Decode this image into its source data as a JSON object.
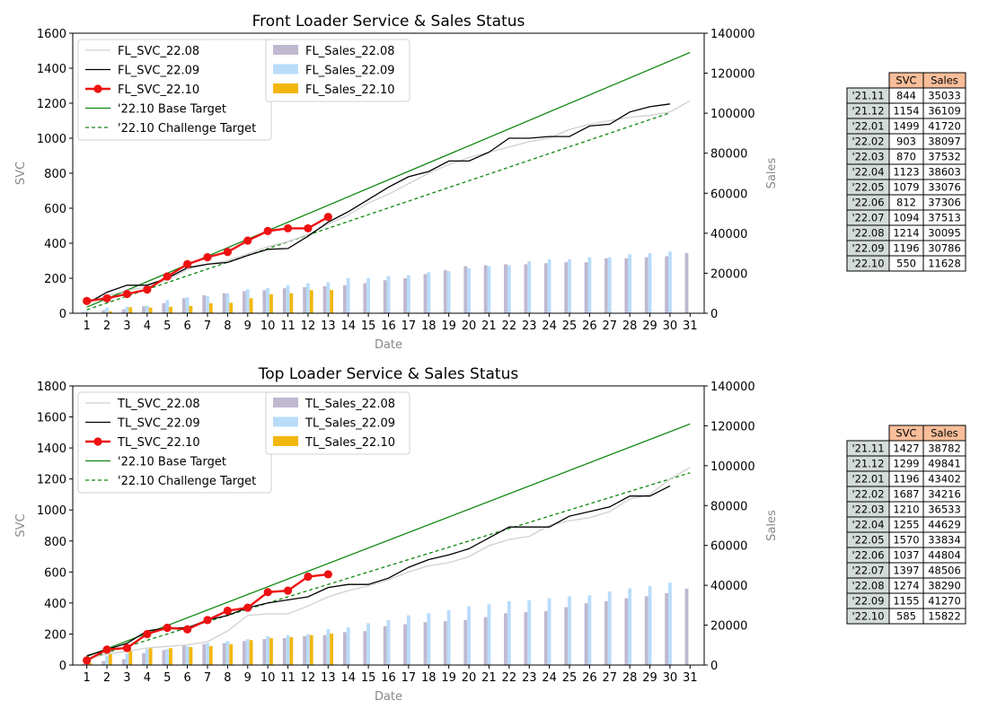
{
  "colors": {
    "svc_prev2": "#d0d0d0",
    "svc_prev1": "#000000",
    "svc_curr": "#ee1111",
    "base_target": "#118811",
    "challenge_target": "#118811",
    "sales_prev2": "#c0b8cf",
    "sales_prev1": "#b9dcfb",
    "sales_curr": "#f2b70f",
    "table_header_bg": "#f8be9a",
    "table_rowlabel_bg": "#d4dcda"
  },
  "chart_data": [
    {
      "type": "bar+line",
      "title": "Front Loader Service & Sales Status",
      "xlabel": "Date",
      "ylabel": "SVC",
      "y2label": "Sales",
      "ylim": [
        0,
        1600
      ],
      "y2lim": [
        0,
        140000
      ],
      "yticks": [
        0,
        200,
        400,
        600,
        800,
        1000,
        1200,
        1400,
        1600
      ],
      "y2ticks": [
        0,
        20000,
        40000,
        60000,
        80000,
        100000,
        120000,
        140000
      ],
      "x": [
        1,
        2,
        3,
        4,
        5,
        6,
        7,
        8,
        9,
        10,
        11,
        12,
        13,
        14,
        15,
        16,
        17,
        18,
        19,
        20,
        21,
        22,
        23,
        24,
        25,
        26,
        27,
        28,
        29,
        30,
        31
      ],
      "legend_left": {
        "position": "upper-left",
        "entries": [
          "FL_SVC_22.08",
          "FL_SVC_22.09",
          "FL_SVC_22.10",
          "'22.10 Base Target",
          "'22.10 Challenge Target"
        ]
      },
      "legend_bars": {
        "position": "upper-center",
        "entries": [
          "FL_Sales_22.08",
          "FL_Sales_22.09",
          "FL_Sales_22.10"
        ]
      },
      "svc_series": [
        {
          "name": "FL_SVC_22.08",
          "values": [
            70,
            100,
            130,
            150,
            190,
            250,
            280,
            300,
            340,
            380,
            410,
            450,
            510,
            560,
            630,
            680,
            740,
            800,
            850,
            890,
            920,
            950,
            980,
            1000,
            1050,
            1080,
            1100,
            1120,
            1130,
            1150,
            1214
          ]
        },
        {
          "name": "FL_SVC_22.09",
          "values": [
            55,
            120,
            160,
            160,
            200,
            260,
            280,
            290,
            330,
            365,
            370,
            440,
            520,
            580,
            650,
            720,
            780,
            810,
            870,
            870,
            920,
            1000,
            1000,
            1010,
            1010,
            1070,
            1080,
            1150,
            1180,
            1196
          ]
        },
        {
          "name": "FL_SVC_22.10",
          "values": [
            70,
            85,
            110,
            135,
            210,
            280,
            320,
            350,
            415,
            470,
            485,
            485,
            550
          ]
        }
      ],
      "targets": [
        {
          "name": "'22.10 Base Target",
          "from": [
            1,
            35
          ],
          "to": [
            31,
            1490
          ],
          "style": "solid"
        },
        {
          "name": "'22.10 Challenge Target",
          "from": [
            1,
            20
          ],
          "to": [
            30,
            1145
          ],
          "style": "dashed"
        }
      ],
      "sales_series": [
        {
          "name": "FL_Sales_22.08",
          "values": [
            400,
            1500,
            2000,
            3500,
            5000,
            7500,
            9000,
            10000,
            11000,
            11500,
            12500,
            13000,
            13500,
            14000,
            15000,
            16500,
            17500,
            19500,
            21500,
            23500,
            24000,
            24500,
            24500,
            25000,
            25500,
            25500,
            27500,
            27500,
            28000,
            28500,
            30095
          ]
        },
        {
          "name": "FL_Sales_22.09",
          "values": [
            1100,
            2800,
            3300,
            3800,
            6500,
            8000,
            8500,
            10000,
            12000,
            12500,
            14000,
            15000,
            15500,
            17500,
            17500,
            18500,
            19000,
            20500,
            21000,
            22500,
            23500,
            24000,
            26000,
            27000,
            27000,
            28000,
            28000,
            29500,
            30000,
            30786
          ]
        },
        {
          "name": "FL_Sales_22.10",
          "values": [
            200,
            1000,
            3000,
            2800,
            3200,
            3600,
            5000,
            5200,
            7500,
            9500,
            10000,
            11500,
            11628
          ]
        }
      ],
      "table": {
        "headers": [
          "SVC",
          "Sales"
        ],
        "rows": [
          {
            "label": "'21.11",
            "svc": "844",
            "sales": "35033"
          },
          {
            "label": "'21.12",
            "svc": "1154",
            "sales": "36109"
          },
          {
            "label": "'22.01",
            "svc": "1499",
            "sales": "41720"
          },
          {
            "label": "'22.02",
            "svc": "903",
            "sales": "38097"
          },
          {
            "label": "'22.03",
            "svc": "870",
            "sales": "37532"
          },
          {
            "label": "'22.04",
            "svc": "1123",
            "sales": "38603"
          },
          {
            "label": "'22.05",
            "svc": "1079",
            "sales": "33076"
          },
          {
            "label": "'22.06",
            "svc": "812",
            "sales": "37306"
          },
          {
            "label": "'22.07",
            "svc": "1094",
            "sales": "37513"
          },
          {
            "label": "'22.08",
            "svc": "1214",
            "sales": "30095"
          },
          {
            "label": "'22.09",
            "svc": "1196",
            "sales": "30786"
          },
          {
            "label": "'22.10",
            "svc": "550",
            "sales": "11628"
          }
        ]
      }
    },
    {
      "type": "bar+line",
      "title": "Top Loader Service & Sales Status",
      "xlabel": "Date",
      "ylabel": "SVC",
      "y2label": "Sales",
      "ylim": [
        0,
        1800
      ],
      "y2lim": [
        0,
        140000
      ],
      "yticks": [
        0,
        200,
        400,
        600,
        800,
        1000,
        1200,
        1400,
        1600,
        1800
      ],
      "y2ticks": [
        0,
        20000,
        40000,
        60000,
        80000,
        100000,
        120000,
        140000
      ],
      "x": [
        1,
        2,
        3,
        4,
        5,
        6,
        7,
        8,
        9,
        10,
        11,
        12,
        13,
        14,
        15,
        16,
        17,
        18,
        19,
        20,
        21,
        22,
        23,
        24,
        25,
        26,
        27,
        28,
        29,
        30,
        31
      ],
      "legend_left": {
        "position": "upper-left",
        "entries": [
          "TL_SVC_22.08",
          "TL_SVC_22.09",
          "TL_SVC_22.10",
          "'22.10 Base Target",
          "'22.10 Challenge Target"
        ]
      },
      "legend_bars": {
        "position": "upper-center",
        "entries": [
          "TL_Sales_22.08",
          "TL_Sales_22.09",
          "TL_Sales_22.10"
        ]
      },
      "svc_series": [
        {
          "name": "TL_SVC_22.08",
          "values": [
            40,
            70,
            90,
            110,
            120,
            130,
            150,
            220,
            320,
            330,
            330,
            380,
            440,
            480,
            510,
            550,
            600,
            640,
            660,
            700,
            770,
            810,
            830,
            900,
            930,
            950,
            990,
            1070,
            1100,
            1200,
            1274
          ]
        },
        {
          "name": "TL_SVC_22.09",
          "values": [
            60,
            100,
            140,
            220,
            240,
            240,
            290,
            320,
            370,
            400,
            420,
            440,
            500,
            520,
            520,
            560,
            630,
            680,
            710,
            750,
            820,
            890,
            890,
            890,
            960,
            990,
            1020,
            1090,
            1090,
            1155
          ]
        },
        {
          "name": "TL_SVC_22.10",
          "values": [
            30,
            100,
            110,
            200,
            240,
            230,
            290,
            350,
            370,
            470,
            480,
            570,
            585
          ]
        }
      ],
      "targets": [
        {
          "name": "'22.10 Base Target",
          "from": [
            1,
            55
          ],
          "to": [
            31,
            1555
          ],
          "style": "solid"
        },
        {
          "name": "'22.10 Challenge Target",
          "from": [
            1,
            40
          ],
          "to": [
            31,
            1240
          ],
          "style": "dashed"
        }
      ],
      "sales_series": [
        {
          "name": "TL_Sales_22.08",
          "values": [
            500,
            2000,
            3000,
            6000,
            7500,
            10000,
            10500,
            11000,
            12000,
            13000,
            13500,
            14500,
            15000,
            16500,
            17000,
            19500,
            20500,
            21500,
            22000,
            22500,
            24000,
            26000,
            26500,
            27000,
            29000,
            31000,
            32000,
            33500,
            34500,
            36000,
            38290
          ]
        },
        {
          "name": "TL_Sales_22.09",
          "values": [
            1500,
            4500,
            5800,
            8000,
            8000,
            9500,
            11000,
            12000,
            13000,
            14500,
            15000,
            15500,
            18000,
            19000,
            21000,
            22500,
            25000,
            26000,
            27500,
            29500,
            30500,
            32000,
            32500,
            33500,
            34500,
            35000,
            37000,
            38500,
            39500,
            41270
          ]
        },
        {
          "name": "TL_Sales_22.10",
          "values": [
            1000,
            6000,
            7000,
            8500,
            8500,
            9000,
            9500,
            10500,
            12500,
            13500,
            14000,
            15000,
            15822
          ]
        }
      ],
      "table": {
        "headers": [
          "SVC",
          "Sales"
        ],
        "rows": [
          {
            "label": "'21.11",
            "svc": "1427",
            "sales": "38782"
          },
          {
            "label": "'21.12",
            "svc": "1299",
            "sales": "49841"
          },
          {
            "label": "'22.01",
            "svc": "1196",
            "sales": "43402"
          },
          {
            "label": "'22.02",
            "svc": "1687",
            "sales": "34216"
          },
          {
            "label": "'22.03",
            "svc": "1210",
            "sales": "36533"
          },
          {
            "label": "'22.04",
            "svc": "1255",
            "sales": "44629"
          },
          {
            "label": "'22.05",
            "svc": "1570",
            "sales": "33834"
          },
          {
            "label": "'22.06",
            "svc": "1037",
            "sales": "44804"
          },
          {
            "label": "'22.07",
            "svc": "1397",
            "sales": "48506"
          },
          {
            "label": "'22.08",
            "svc": "1274",
            "sales": "38290"
          },
          {
            "label": "'22.09",
            "svc": "1155",
            "sales": "41270"
          },
          {
            "label": "'22.10",
            "svc": "585",
            "sales": "15822"
          }
        ]
      }
    }
  ]
}
